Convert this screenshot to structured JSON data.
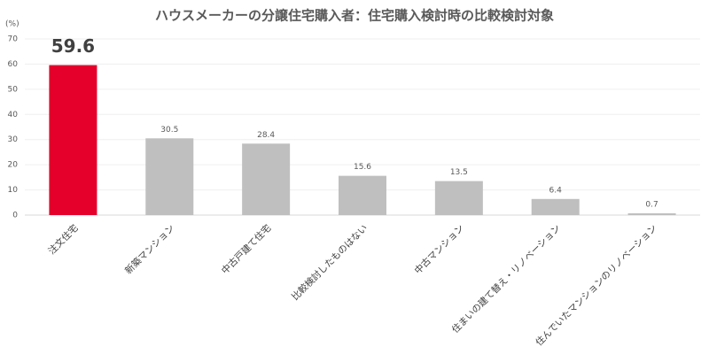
{
  "chart_data": {
    "type": "bar",
    "title": "ハウスメーカーの分譲住宅購入者：住宅購入検討時の比較検討対象",
    "y_label": "(%)",
    "categories": [
      "注文住宅",
      "新築マンション",
      "中古戸建て住宅",
      "比較検討したものはない",
      "中古マンション",
      "住まいの建て替え・リノベーション",
      "住んでいたマンションのリノベーション"
    ],
    "values": [
      59.6,
      30.5,
      28.4,
      15.6,
      13.5,
      6.4,
      0.7
    ],
    "colors": [
      "#e4002b",
      "#bfbfbf",
      "#bfbfbf",
      "#bfbfbf",
      "#bfbfbf",
      "#bfbfbf",
      "#bfbfbf"
    ],
    "ylim": [
      0,
      70
    ],
    "yticks": [
      0,
      10,
      20,
      30,
      40,
      50,
      60,
      70
    ],
    "grid": true
  }
}
